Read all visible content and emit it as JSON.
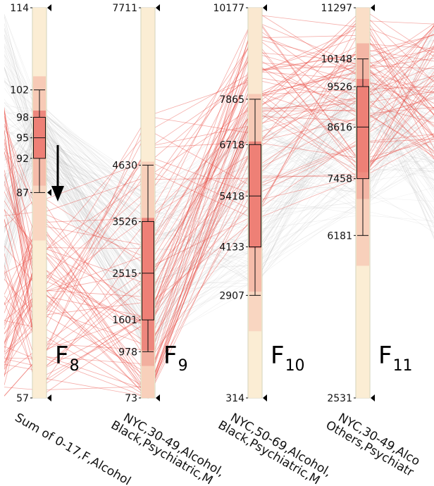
{
  "chart_data": {
    "type": "parallel_coordinates",
    "colors": {
      "highlight_line": "#e8473f",
      "context_line": "#9a9a9a",
      "axis_fill": "#fdf7dd",
      "box_fill": "#ee7d74",
      "arrow": "#000000"
    },
    "axes": [
      {
        "id": "F8",
        "name_base": "F",
        "name_sub": "8",
        "label_lines": [
          "Sum of 0-17,F,Alcohol"
        ],
        "min": 57,
        "max": 114,
        "ticks": [
          114,
          102,
          98,
          95,
          92,
          87,
          57
        ],
        "box": {
          "whisker_low": 87,
          "q1": 92,
          "median": 95,
          "q3": 98,
          "whisker_high": 102
        },
        "heat": [
          {
            "from": 57,
            "to": 80,
            "level": 0.08
          },
          {
            "from": 80,
            "to": 88,
            "level": 0.25
          },
          {
            "from": 88,
            "to": 92,
            "level": 0.45
          },
          {
            "from": 92,
            "to": 99,
            "level": 0.85
          },
          {
            "from": 99,
            "to": 104,
            "level": 0.35
          },
          {
            "from": 104,
            "to": 114,
            "level": 0.08
          }
        ],
        "filter_marker": 87
      },
      {
        "id": "F9",
        "name_base": "F",
        "name_sub": "9",
        "label_lines": [
          "NYC,30-49,Alcohol,",
          "Black,Psychiatric,M"
        ],
        "min": 73,
        "max": 7711,
        "ticks": [
          7711,
          4630,
          3526,
          2515,
          1601,
          978,
          73
        ],
        "box": {
          "whisker_low": 978,
          "q1": 1601,
          "median": 2515,
          "q3": 3526,
          "whisker_high": 4630
        },
        "heat": [
          {
            "from": 73,
            "to": 700,
            "level": 0.3
          },
          {
            "from": 700,
            "to": 1000,
            "level": 0.55
          },
          {
            "from": 1000,
            "to": 3600,
            "level": 0.85
          },
          {
            "from": 3600,
            "to": 4700,
            "level": 0.3
          },
          {
            "from": 4700,
            "to": 7711,
            "level": 0.08
          }
        ]
      },
      {
        "id": "F10",
        "name_base": "F",
        "name_sub": "10",
        "label_lines": [
          "NYC,50-69,Alcohol,",
          "Black,Psychiatric,M"
        ],
        "min": 314,
        "max": 10177,
        "ticks": [
          10177,
          7865,
          6718,
          5418,
          4133,
          2907,
          314
        ],
        "box": {
          "whisker_low": 2907,
          "q1": 4133,
          "median": 5418,
          "q3": 6718,
          "whisker_high": 7865
        },
        "heat": [
          {
            "from": 314,
            "to": 2000,
            "level": 0.08
          },
          {
            "from": 2000,
            "to": 3000,
            "level": 0.25
          },
          {
            "from": 3000,
            "to": 4100,
            "level": 0.45
          },
          {
            "from": 4100,
            "to": 6800,
            "level": 0.85
          },
          {
            "from": 6800,
            "to": 8000,
            "level": 0.35
          },
          {
            "from": 8000,
            "to": 10177,
            "level": 0.12
          }
        ]
      },
      {
        "id": "F11",
        "name_base": "F",
        "name_sub": "11",
        "label_lines": [
          "NYC,30-49,Alco",
          "Others,Psychiatr"
        ],
        "min": 2531,
        "max": 11297,
        "ticks": [
          11297,
          10148,
          9526,
          8616,
          7458,
          6181,
          2531
        ],
        "box": {
          "whisker_low": 6181,
          "q1": 7458,
          "median": 8616,
          "q3": 9526,
          "whisker_high": 10148
        },
        "heat": [
          {
            "from": 2531,
            "to": 5500,
            "level": 0.08
          },
          {
            "from": 5500,
            "to": 7000,
            "level": 0.3
          },
          {
            "from": 7000,
            "to": 7600,
            "level": 0.5
          },
          {
            "from": 7600,
            "to": 9700,
            "level": 0.85
          },
          {
            "from": 9700,
            "to": 10500,
            "level": 0.5
          },
          {
            "from": 10500,
            "to": 11297,
            "level": 0.2
          }
        ]
      }
    ]
  }
}
